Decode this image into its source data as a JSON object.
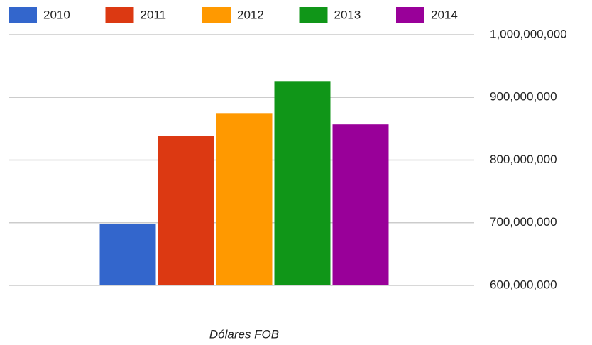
{
  "chart_data": {
    "type": "bar",
    "categories": [
      "Dólares FOB"
    ],
    "series": [
      {
        "name": "2010",
        "color": "#3366cc",
        "values": [
          698000000
        ]
      },
      {
        "name": "2011",
        "color": "#dc3912",
        "values": [
          839000000
        ]
      },
      {
        "name": "2012",
        "color": "#ff9900",
        "values": [
          875000000
        ]
      },
      {
        "name": "2013",
        "color": "#109618",
        "values": [
          926000000
        ]
      },
      {
        "name": "2014",
        "color": "#990099",
        "values": [
          857000000
        ]
      }
    ],
    "ylim": [
      600000000,
      1000000000
    ],
    "yticks": [
      {
        "value": 600000000,
        "label": "600,000,000"
      },
      {
        "value": 700000000,
        "label": "700,000,000"
      },
      {
        "value": 800000000,
        "label": "800,000,000"
      },
      {
        "value": 900000000,
        "label": "900,000,000"
      },
      {
        "value": 1000000000,
        "label": "1,000,000,000"
      }
    ],
    "grid": true,
    "legend": "top",
    "y_axis_side": "right"
  }
}
